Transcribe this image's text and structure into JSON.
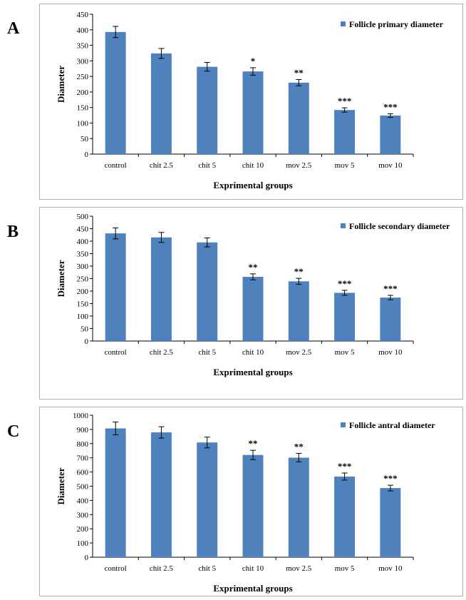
{
  "colors": {
    "bar": "#4f81bd",
    "axis": "#000000",
    "frame": "#b0b0b0"
  },
  "chart_data": [
    {
      "type": "bar",
      "panel_label": "A",
      "categories": [
        "control",
        "chit 2.5",
        "chit 5",
        "chit 10",
        "mov 2.5",
        "mov 5",
        "mov 10"
      ],
      "series": [
        {
          "name": "Follicle primary diameter",
          "values": [
            393,
            324,
            281,
            266,
            230,
            142,
            124
          ],
          "errors": [
            18,
            16,
            14,
            12,
            10,
            7,
            6
          ]
        }
      ],
      "significance": [
        "",
        "",
        "",
        "*",
        "**",
        "***",
        "***"
      ],
      "xlabel": "Exprimental groups",
      "ylabel": "Diameter",
      "ylim": [
        0,
        450
      ],
      "yticks": [
        0,
        50,
        100,
        150,
        200,
        250,
        300,
        350,
        400,
        450
      ],
      "legend_position": "top-right",
      "grid": false
    },
    {
      "type": "bar",
      "panel_label": "B",
      "categories": [
        "control",
        "chit 2.5",
        "chit 5",
        "chit 10",
        "mov 2.5",
        "mov 5",
        "mov 10"
      ],
      "series": [
        {
          "name": "Follicle secondary diameter",
          "values": [
            431,
            415,
            395,
            257,
            239,
            193,
            174
          ],
          "errors": [
            22,
            20,
            18,
            12,
            12,
            10,
            9
          ]
        }
      ],
      "significance": [
        "",
        "",
        "",
        "**",
        "**",
        "***",
        "***"
      ],
      "xlabel": "Exprimental groups",
      "ylabel": "Diameter",
      "ylim": [
        0,
        500
      ],
      "yticks": [
        0,
        50,
        100,
        150,
        200,
        250,
        300,
        350,
        400,
        450,
        500
      ],
      "legend_position": "top-right",
      "grid": false
    },
    {
      "type": "bar",
      "panel_label": "C",
      "categories": [
        "control",
        "chit 2.5",
        "chit 5",
        "chit 10",
        "mov 2.5",
        "mov 5",
        "mov 10"
      ],
      "series": [
        {
          "name": "Follicle antral diameter",
          "values": [
            907,
            879,
            808,
            720,
            701,
            568,
            487
          ],
          "errors": [
            45,
            40,
            38,
            33,
            30,
            25,
            20
          ]
        }
      ],
      "significance": [
        "",
        "",
        "",
        "**",
        "**",
        "***",
        "***"
      ],
      "xlabel": "Exprimental groups",
      "ylabel": "Diameter",
      "ylim": [
        0,
        1000
      ],
      "yticks": [
        0,
        100,
        200,
        300,
        400,
        500,
        600,
        700,
        800,
        900,
        1000
      ],
      "legend_position": "top-right",
      "grid": false
    }
  ]
}
